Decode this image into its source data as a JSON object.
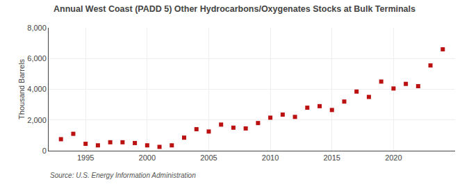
{
  "chart_data": {
    "type": "scatter",
    "title": "Annual West Coast (PADD 5) Other Hydrocarbons/Oxygenates Stocks at Bulk Terminals",
    "ylabel": "Thousand Barrels",
    "source": "Source: U.S. Energy Information Administration",
    "x": [
      1993,
      1994,
      1995,
      1996,
      1997,
      1998,
      1999,
      2000,
      2001,
      2002,
      2003,
      2004,
      2005,
      2006,
      2007,
      2008,
      2009,
      2010,
      2011,
      2012,
      2013,
      2014,
      2015,
      2016,
      2017,
      2018,
      2019,
      2020,
      2021,
      2022,
      2023,
      2024
    ],
    "values": [
      750,
      1100,
      450,
      350,
      550,
      550,
      500,
      350,
      250,
      350,
      850,
      1400,
      1250,
      1700,
      1500,
      1450,
      1800,
      2150,
      2350,
      2200,
      2800,
      2900,
      2650,
      3200,
      3850,
      3500,
      4500,
      4050,
      4350,
      4200,
      5550,
      6600
    ],
    "color": "#bb1111",
    "marker": "square",
    "xlim": [
      1992,
      2025
    ],
    "xticks": [
      1995,
      2000,
      2005,
      2010,
      2015,
      2020
    ],
    "ylim": [
      0,
      8000
    ],
    "yticks": [
      0,
      {
        "value": 2000,
        "label": "2,000"
      },
      {
        "value": 4000,
        "label": "4,000"
      },
      {
        "value": 6000,
        "label": "6,000"
      },
      {
        "value": 8000,
        "label": "8,000"
      }
    ],
    "grid": true
  }
}
